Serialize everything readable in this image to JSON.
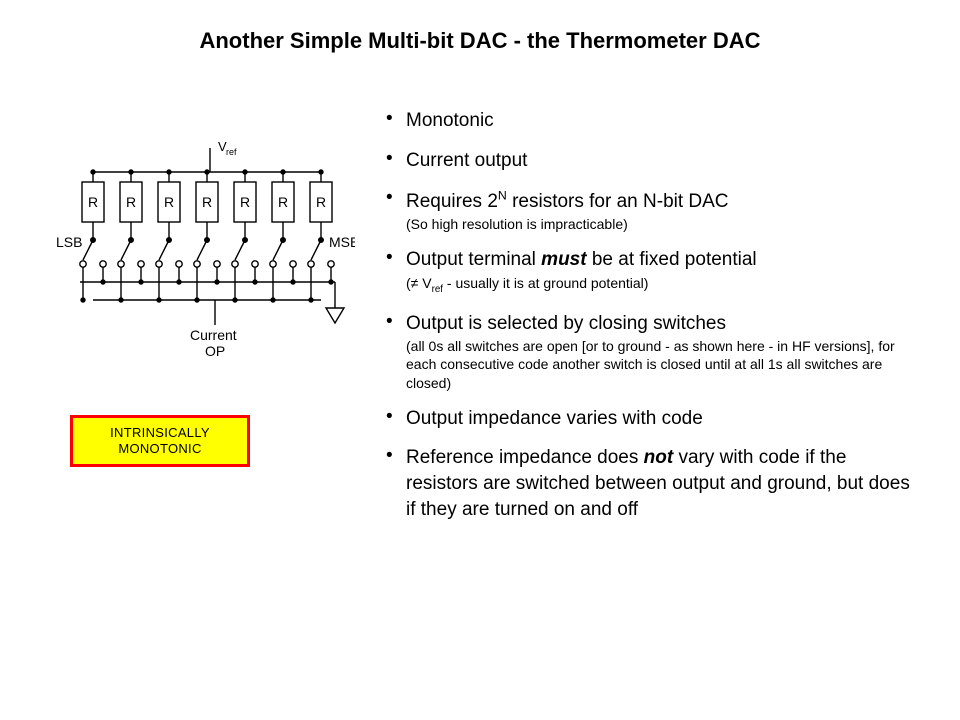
{
  "title": "Another Simple Multi-bit DAC - the Thermometer DAC",
  "diagram": {
    "vref": "Vref",
    "lsb": "LSB",
    "msb": "MSB",
    "r": "R",
    "current": "Current",
    "op": "OP",
    "resistor_count": 7,
    "stroke": "#000000",
    "stroke_width": 1.5
  },
  "badge": {
    "line1": "INTRINSICALLY",
    "line2": "MONOTONIC",
    "background": "#ffff00",
    "border": "#ff0000",
    "border_width": 3,
    "font_size": 13
  },
  "bullets": [
    {
      "main": "Monotonic"
    },
    {
      "main": "Current output"
    },
    {
      "main_pre": "Requires 2",
      "main_sup": "N",
      "main_post": " resistors for an N-bit DAC",
      "sub": "(So high resolution is impracticable)"
    },
    {
      "main_pre": "Output terminal ",
      "main_em": "must",
      "main_post": " be at fixed potential",
      "sub_pre": "(≠ V",
      "sub_sub": "ref",
      "sub_post": " - usually it is at ground potential)"
    },
    {
      "main": "Output is selected by closing switches",
      "sub": "(all 0s all switches are open [or to ground - as shown here - in HF versions], for each consecutive code another switch is closed until at all 1s all switches are closed)"
    },
    {
      "main": "Output impedance varies with code"
    },
    {
      "main_pre": "Reference impedance does ",
      "main_em": "not",
      "main_post": " vary with code if the resistors are switched between output and ground, but does if they are turned on and off"
    }
  ],
  "colors": {
    "text": "#000000",
    "background": "#ffffff"
  }
}
